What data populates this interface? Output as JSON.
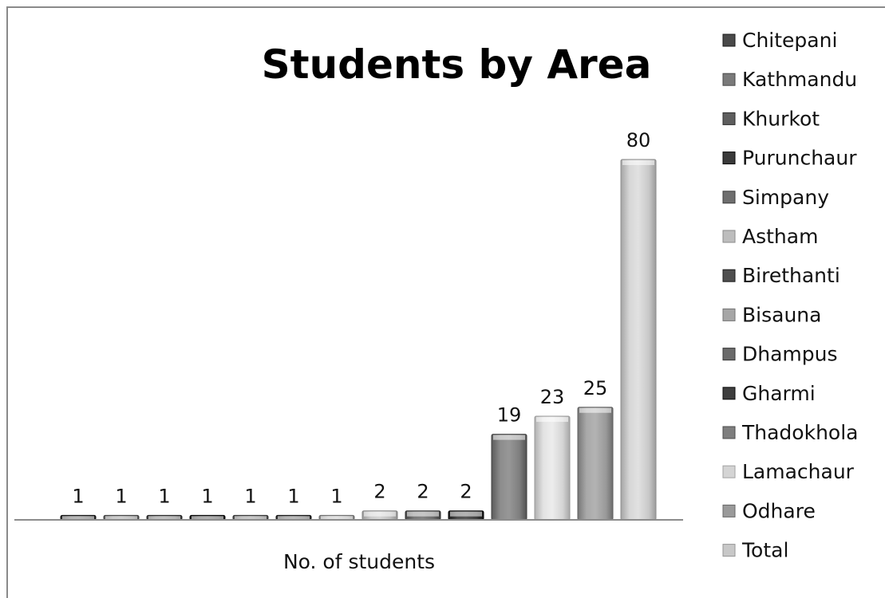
{
  "chart_data": {
    "type": "bar",
    "title": "Students by Area",
    "categories": [
      "No. of students"
    ],
    "series": [
      {
        "name": "Chitepani",
        "values": [
          1
        ],
        "color": "#4a4a4a"
      },
      {
        "name": "Kathmandu",
        "values": [
          1
        ],
        "color": "#7a7a7a"
      },
      {
        "name": "Khurkot",
        "values": [
          1
        ],
        "color": "#5e5e5e"
      },
      {
        "name": "Purunchaur",
        "values": [
          1
        ],
        "color": "#3a3a3a"
      },
      {
        "name": "Simpany",
        "values": [
          1
        ],
        "color": "#6e6e6e"
      },
      {
        "name": "Astham",
        "values": [
          2
        ],
        "color": "#bdbdbd"
      },
      {
        "name": "Birethanti",
        "values": [
          1
        ],
        "color": "#4e4e4e"
      },
      {
        "name": "Bisauna",
        "values": [
          1
        ],
        "color": "#a6a6a6"
      },
      {
        "name": "Dhampus",
        "values": [
          2
        ],
        "color": "#6a6a6a"
      },
      {
        "name": "Gharmi",
        "values": [
          2
        ],
        "color": "#3e3e3e"
      },
      {
        "name": "Thadokhola",
        "values": [
          19
        ],
        "color": "#7e7e7e"
      },
      {
        "name": "Lamachaur",
        "values": [
          23
        ],
        "color": "#d4d4d4"
      },
      {
        "name": "Odhare",
        "values": [
          25
        ],
        "color": "#9a9a9a"
      },
      {
        "name": "Total",
        "values": [
          80
        ],
        "color": "#c8c8c8"
      }
    ],
    "bar_order": [
      "Chitepani",
      "Kathmandu",
      "Khurkot",
      "Purunchaur",
      "Simpany",
      "Birethanti",
      "Bisauna",
      "Astham",
      "Dhampus",
      "Gharmi",
      "Thadokhola",
      "Lamachaur",
      "Odhare",
      "Total"
    ],
    "ylim": [
      0,
      80
    ],
    "grid": false,
    "legend_position": "right",
    "data_labels": true
  }
}
